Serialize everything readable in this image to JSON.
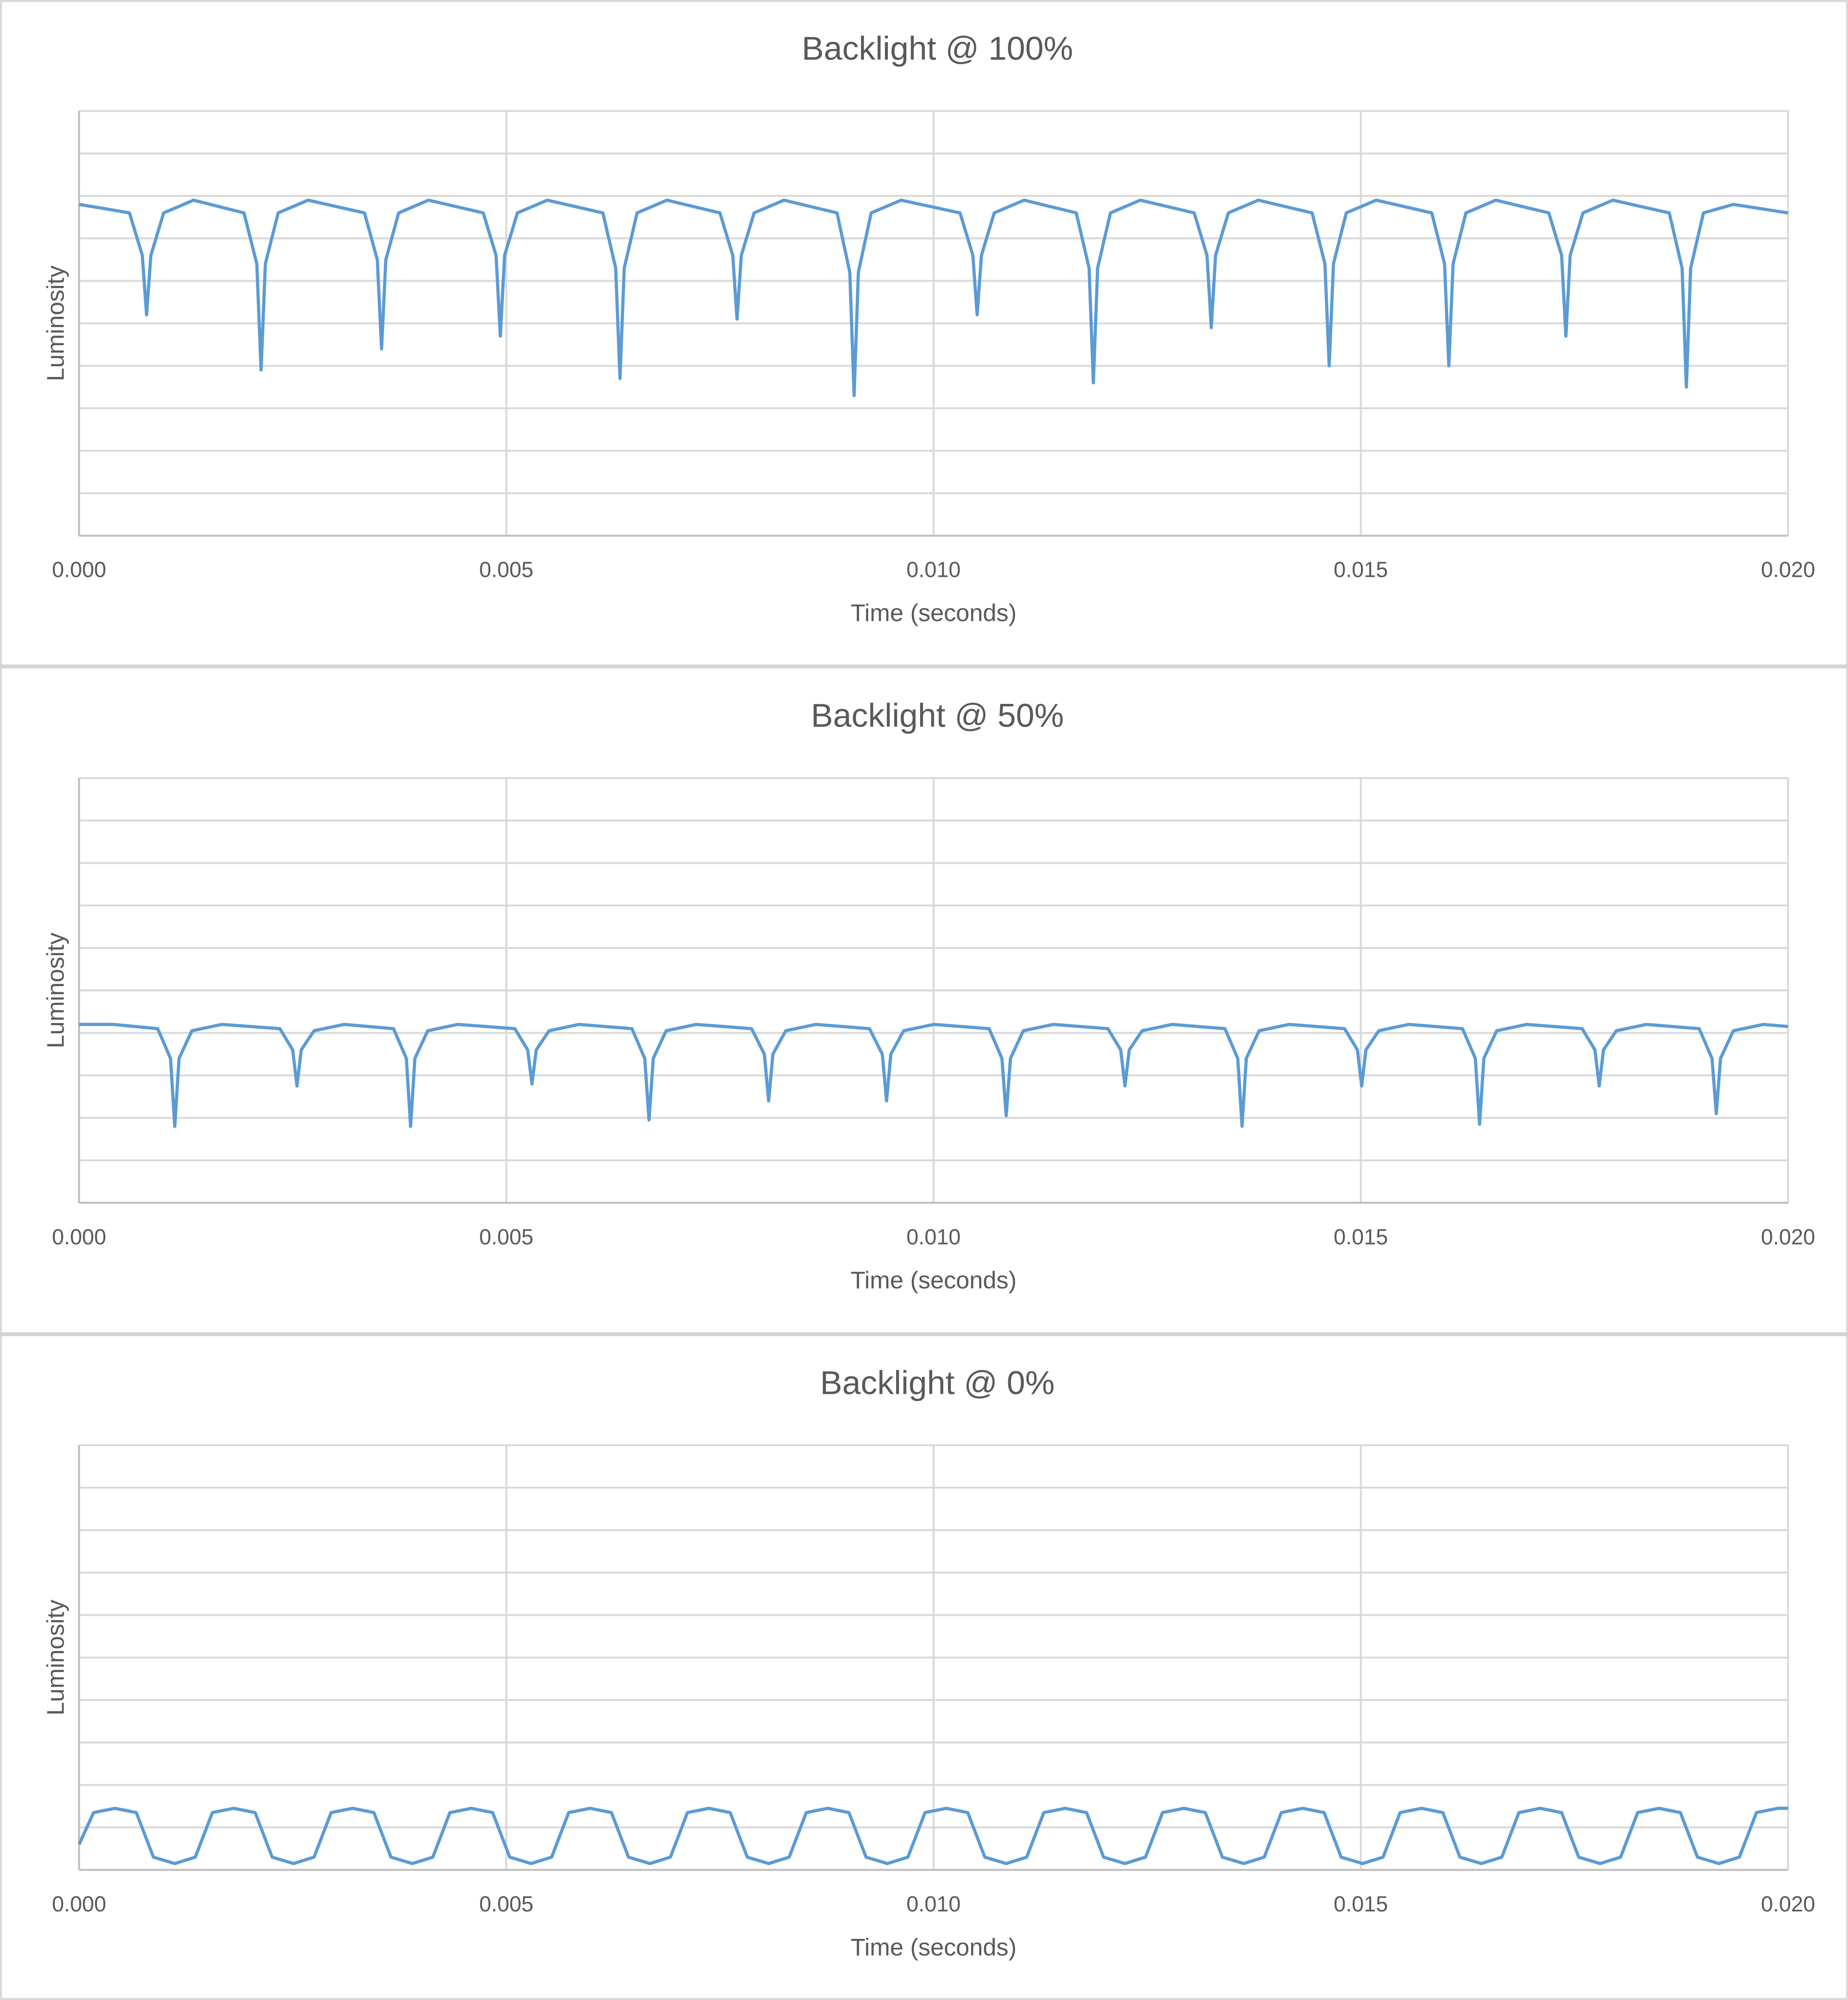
{
  "chart_data": [
    {
      "type": "line",
      "title": "Backlight @ 100%",
      "xlabel": "Time (seconds)",
      "ylabel": "Luminosity",
      "color": "#5b9bd5",
      "xlim": [
        0,
        0.02
      ],
      "xticks": [
        {
          "value": 0,
          "label": "0.000"
        },
        {
          "value": 0.005,
          "label": "0.005"
        },
        {
          "value": 0.01,
          "label": "0.010"
        },
        {
          "value": 0.015,
          "label": "0.015"
        },
        {
          "value": 0.02,
          "label": "0.020"
        }
      ],
      "ylim": [
        0,
        10
      ],
      "ygrid": [
        0,
        1,
        2,
        3,
        4,
        5,
        6,
        7,
        8,
        9,
        10
      ],
      "x": [
        0,
        0.0003,
        0.00059,
        0.00074,
        0.00079,
        0.00084,
        0.00099,
        0.00134,
        0.00193,
        0.00208,
        0.00213,
        0.00218,
        0.00233,
        0.00268,
        0.00334,
        0.00349,
        0.00354,
        0.00359,
        0.00374,
        0.00409,
        0.00473,
        0.00488,
        0.00493,
        0.00498,
        0.00513,
        0.00548,
        0.00613,
        0.00628,
        0.00633,
        0.00638,
        0.00653,
        0.00688,
        0.0075,
        0.00765,
        0.0077,
        0.00775,
        0.0079,
        0.00825,
        0.00887,
        0.00902,
        0.00907,
        0.00912,
        0.00927,
        0.00962,
        0.01031,
        0.01046,
        0.01051,
        0.01056,
        0.01071,
        0.01106,
        0.01167,
        0.01182,
        0.01187,
        0.01192,
        0.01207,
        0.01242,
        0.01305,
        0.0132,
        0.01325,
        0.0133,
        0.01345,
        0.0138,
        0.01443,
        0.01458,
        0.01463,
        0.01468,
        0.01483,
        0.01518,
        0.01583,
        0.01598,
        0.01603,
        0.01608,
        0.01623,
        0.01658,
        0.0172,
        0.01735,
        0.0174,
        0.01745,
        0.0176,
        0.01795,
        0.01861,
        0.01876,
        0.01881,
        0.01886,
        0.01901,
        0.01936,
        0.02
      ],
      "values": [
        7.8,
        7.7,
        7.6,
        6.6,
        5.2,
        6.6,
        7.6,
        7.9,
        7.6,
        6.4,
        3.9,
        6.4,
        7.6,
        7.9,
        7.6,
        6.5,
        4.4,
        6.5,
        7.6,
        7.9,
        7.6,
        6.6,
        4.7,
        6.6,
        7.6,
        7.9,
        7.6,
        6.3,
        3.7,
        6.3,
        7.6,
        7.9,
        7.6,
        6.6,
        5.1,
        6.6,
        7.6,
        7.9,
        7.6,
        6.2,
        3.3,
        6.2,
        7.6,
        7.9,
        7.6,
        6.6,
        5.2,
        6.6,
        7.6,
        7.9,
        7.6,
        6.3,
        3.6,
        6.3,
        7.6,
        7.9,
        7.6,
        6.6,
        4.9,
        6.6,
        7.6,
        7.9,
        7.6,
        6.4,
        4.0,
        6.4,
        7.6,
        7.9,
        7.6,
        6.4,
        4.0,
        6.4,
        7.6,
        7.9,
        7.6,
        6.6,
        4.7,
        6.6,
        7.6,
        7.9,
        7.6,
        6.3,
        3.5,
        6.3,
        7.6,
        7.8,
        7.6
      ]
    },
    {
      "type": "line",
      "title": "Backlight @ 50%",
      "xlabel": "Time (seconds)",
      "ylabel": "Luminosity",
      "color": "#5b9bd5",
      "xlim": [
        0,
        0.02
      ],
      "xticks": [
        {
          "value": 0,
          "label": "0.000"
        },
        {
          "value": 0.005,
          "label": "0.005"
        },
        {
          "value": 0.01,
          "label": "0.010"
        },
        {
          "value": 0.015,
          "label": "0.015"
        },
        {
          "value": 0.02,
          "label": "0.020"
        }
      ],
      "ylim": [
        0,
        10
      ],
      "ygrid": [
        0,
        1,
        2,
        3,
        4,
        5,
        6,
        7,
        8,
        9,
        10
      ],
      "x": [
        0,
        0.0004,
        0.00092,
        0.00107,
        0.00112,
        0.00117,
        0.00132,
        0.00167,
        0.00235,
        0.0025,
        0.00255,
        0.0026,
        0.00275,
        0.0031,
        0.00368,
        0.00383,
        0.00388,
        0.00393,
        0.00408,
        0.00443,
        0.0051,
        0.00525,
        0.0053,
        0.00535,
        0.0055,
        0.00585,
        0.00647,
        0.00662,
        0.00667,
        0.00672,
        0.00687,
        0.00722,
        0.00787,
        0.00802,
        0.00807,
        0.00812,
        0.00827,
        0.00862,
        0.00925,
        0.0094,
        0.00945,
        0.0095,
        0.00965,
        0.01,
        0.01065,
        0.0108,
        0.01085,
        0.0109,
        0.01105,
        0.0114,
        0.01204,
        0.01219,
        0.01224,
        0.01229,
        0.01244,
        0.01279,
        0.01341,
        0.01356,
        0.01361,
        0.01366,
        0.01381,
        0.01416,
        0.01481,
        0.01496,
        0.01501,
        0.01506,
        0.01521,
        0.01556,
        0.01619,
        0.01634,
        0.01639,
        0.01644,
        0.01659,
        0.01694,
        0.01759,
        0.01774,
        0.01779,
        0.01784,
        0.01799,
        0.01834,
        0.01896,
        0.01911,
        0.01916,
        0.01921,
        0.01936,
        0.01971,
        0.02
      ],
      "values": [
        4.2,
        4.2,
        4.1,
        3.4,
        1.8,
        3.4,
        4.05,
        4.2,
        4.1,
        3.6,
        2.75,
        3.6,
        4.05,
        4.2,
        4.1,
        3.4,
        1.8,
        3.4,
        4.05,
        4.2,
        4.1,
        3.6,
        2.8,
        3.6,
        4.05,
        4.2,
        4.1,
        3.4,
        1.95,
        3.4,
        4.05,
        4.2,
        4.1,
        3.5,
        2.4,
        3.5,
        4.05,
        4.2,
        4.1,
        3.5,
        2.4,
        3.5,
        4.05,
        4.2,
        4.1,
        3.4,
        2.05,
        3.4,
        4.05,
        4.2,
        4.1,
        3.6,
        2.75,
        3.6,
        4.05,
        4.2,
        4.1,
        3.4,
        1.8,
        3.4,
        4.05,
        4.2,
        4.1,
        3.6,
        2.75,
        3.6,
        4.05,
        4.2,
        4.1,
        3.4,
        1.85,
        3.4,
        4.05,
        4.2,
        4.1,
        3.6,
        2.75,
        3.6,
        4.05,
        4.2,
        4.1,
        3.4,
        2.1,
        3.4,
        4.05,
        4.2,
        4.15
      ]
    },
    {
      "type": "line",
      "title": "Backlight @ 0%",
      "xlabel": "Time (seconds)",
      "ylabel": "Luminosity",
      "color": "#5b9bd5",
      "xlim": [
        0,
        0.02
      ],
      "xticks": [
        {
          "value": 0,
          "label": "0.000"
        },
        {
          "value": 0.005,
          "label": "0.005"
        },
        {
          "value": 0.01,
          "label": "0.010"
        },
        {
          "value": 0.015,
          "label": "0.015"
        },
        {
          "value": 0.02,
          "label": "0.020"
        }
      ],
      "ylim": [
        0,
        10
      ],
      "ygrid": [
        0,
        1,
        2,
        3,
        4,
        5,
        6,
        7,
        8,
        9,
        10
      ],
      "x": [
        0,
        0.00017,
        0.00042,
        0.00067,
        0.00087,
        0.00112,
        0.00136,
        0.00156,
        0.00181,
        0.00206,
        0.00226,
        0.00251,
        0.00275,
        0.00295,
        0.0032,
        0.00345,
        0.00365,
        0.0039,
        0.00414,
        0.00434,
        0.00459,
        0.00484,
        0.00504,
        0.00529,
        0.00553,
        0.00573,
        0.00598,
        0.00623,
        0.00643,
        0.00668,
        0.00692,
        0.00712,
        0.00737,
        0.00762,
        0.00782,
        0.00807,
        0.00831,
        0.00851,
        0.00876,
        0.00901,
        0.00921,
        0.00946,
        0.0097,
        0.0099,
        0.01015,
        0.0104,
        0.0106,
        0.01085,
        0.01109,
        0.01129,
        0.01154,
        0.01179,
        0.01199,
        0.01224,
        0.01248,
        0.01268,
        0.01293,
        0.01318,
        0.01338,
        0.01363,
        0.01387,
        0.01407,
        0.01432,
        0.01457,
        0.01477,
        0.01502,
        0.01526,
        0.01546,
        0.01571,
        0.01596,
        0.01616,
        0.01641,
        0.01665,
        0.01685,
        0.0171,
        0.01735,
        0.01755,
        0.0178,
        0.01804,
        0.01824,
        0.01849,
        0.01874,
        0.01894,
        0.01919,
        0.01943,
        0.01963,
        0.01988,
        0.02
      ],
      "values": [
        0.6,
        1.35,
        1.45,
        1.35,
        0.3,
        0.15,
        0.3,
        1.35,
        1.45,
        1.35,
        0.3,
        0.15,
        0.3,
        1.35,
        1.45,
        1.35,
        0.3,
        0.15,
        0.3,
        1.35,
        1.45,
        1.35,
        0.3,
        0.15,
        0.3,
        1.35,
        1.45,
        1.35,
        0.3,
        0.15,
        0.3,
        1.35,
        1.45,
        1.35,
        0.3,
        0.15,
        0.3,
        1.35,
        1.45,
        1.35,
        0.3,
        0.15,
        0.3,
        1.35,
        1.45,
        1.35,
        0.3,
        0.15,
        0.3,
        1.35,
        1.45,
        1.35,
        0.3,
        0.15,
        0.3,
        1.35,
        1.45,
        1.35,
        0.3,
        0.15,
        0.3,
        1.35,
        1.45,
        1.35,
        0.3,
        0.15,
        0.3,
        1.35,
        1.45,
        1.35,
        0.3,
        0.15,
        0.3,
        1.35,
        1.45,
        1.35,
        0.3,
        0.15,
        0.3,
        1.35,
        1.45,
        1.35,
        0.3,
        0.15,
        0.3,
        1.35,
        1.45,
        1.45
      ]
    }
  ]
}
